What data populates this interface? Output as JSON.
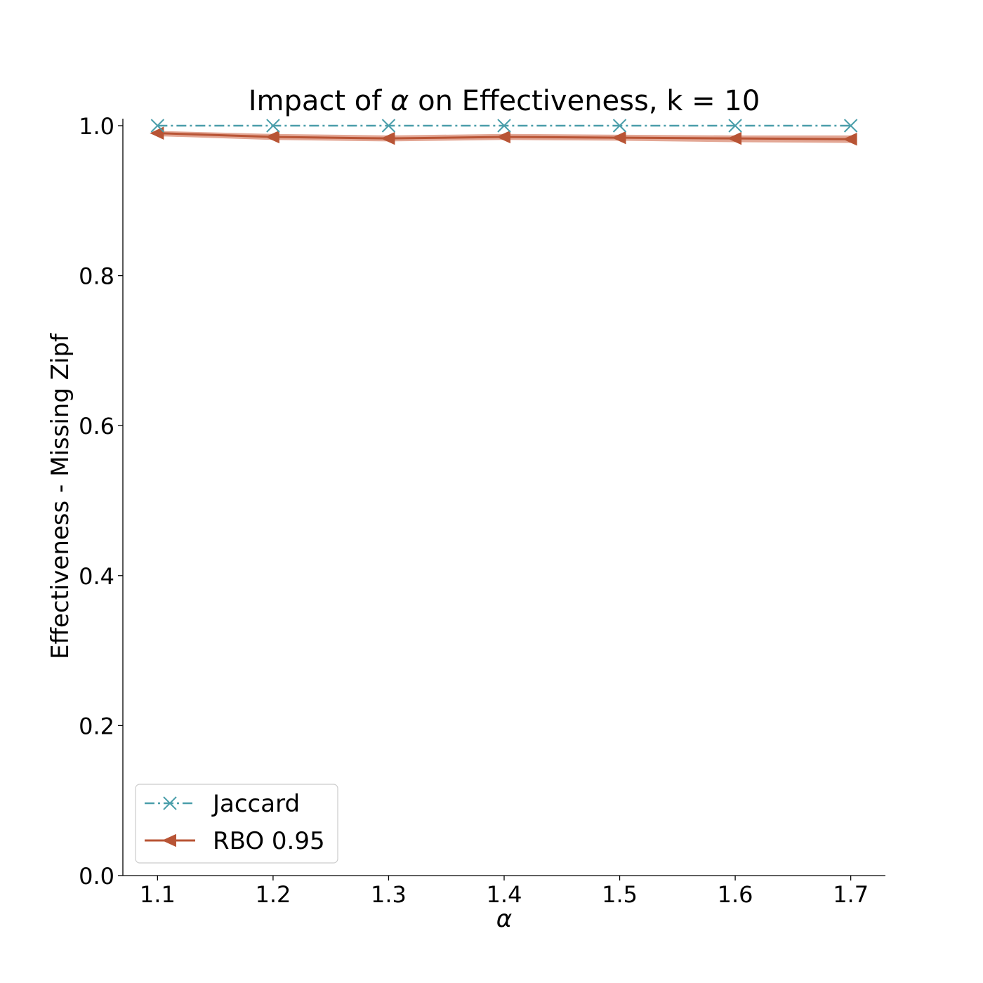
{
  "chart_data": {
    "type": "line",
    "title_prefix": "Impact of ",
    "title_symbol": "α",
    "title_suffix": " on Effectiveness, k = 10",
    "xlabel": "α",
    "ylabel": "Effectiveness - Missing Zipf",
    "x": [
      1.1,
      1.2,
      1.3,
      1.4,
      1.5,
      1.6,
      1.7
    ],
    "x_tick_labels": [
      "1.1",
      "1.2",
      "1.3",
      "1.4",
      "1.5",
      "1.6",
      "1.7"
    ],
    "xlim": [
      1.07,
      1.73
    ],
    "ylim": [
      0.0,
      1.0
    ],
    "y_ticks": [
      0.0,
      0.2,
      0.4,
      0.6,
      0.8,
      1.0
    ],
    "y_tick_labels": [
      "0.0",
      "0.2",
      "0.4",
      "0.6",
      "0.8",
      "1.0"
    ],
    "grid": false,
    "legend_position": "lower-left",
    "series": [
      {
        "name": "Jaccard",
        "color": "#4a9eaa",
        "marker": "x",
        "line_style": "dash-dot",
        "values": [
          1.0,
          1.0,
          1.0,
          1.0,
          1.0,
          1.0,
          1.0
        ]
      },
      {
        "name": "RBO 0.95",
        "color": "#b85435",
        "band_color": "#d98a72",
        "marker": "triangle-left",
        "line_style": "solid",
        "values": [
          0.99,
          0.985,
          0.983,
          0.985,
          0.984,
          0.983,
          0.982
        ],
        "band_low": [
          0.986,
          0.981,
          0.979,
          0.981,
          0.98,
          0.978,
          0.977
        ],
        "band_high": [
          0.993,
          0.989,
          0.987,
          0.989,
          0.988,
          0.987,
          0.987
        ]
      }
    ]
  }
}
